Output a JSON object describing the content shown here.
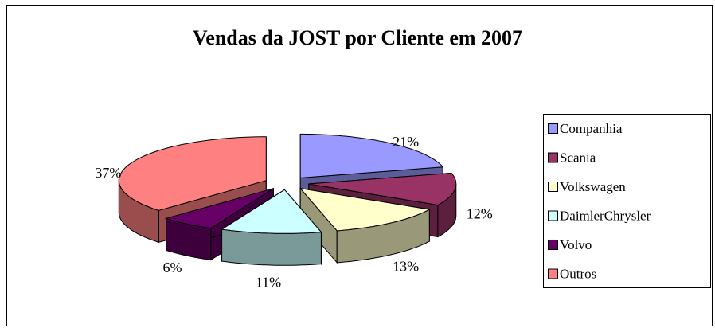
{
  "chart_data": {
    "type": "pie",
    "title": "Vendas da JOST por Cliente em 2007",
    "categories": [
      "Companhia",
      "Scania",
      "Volkswagen",
      "DaimlerChrysler",
      "Volvo",
      "Outros"
    ],
    "values": [
      21,
      12,
      13,
      11,
      6,
      37
    ],
    "value_labels": [
      "21%",
      "12%",
      "13%",
      "11%",
      "6%",
      "37%"
    ],
    "colors": [
      "#9999ff",
      "#993366",
      "#ffffcc",
      "#ccffff",
      "#660066",
      "#ff8080"
    ],
    "legend": "right"
  }
}
